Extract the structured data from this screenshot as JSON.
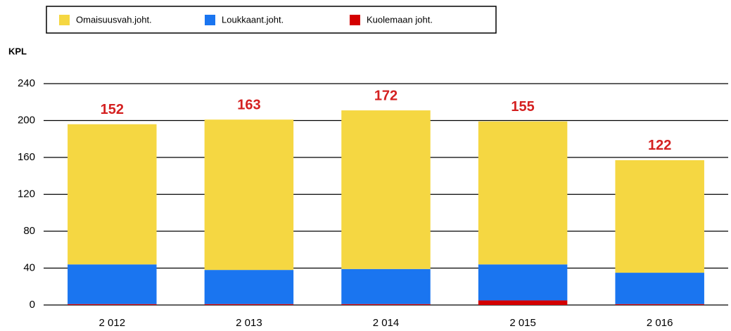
{
  "chart_data": {
    "type": "stacked_bar",
    "y_axis_label": "KPL",
    "categories": [
      "2 012",
      "2 013",
      "2 014",
      "2 015",
      "2 016"
    ],
    "series": [
      {
        "name": "Omaisuusvah.joht.",
        "color": "#f5d742",
        "values": [
          152,
          163,
          172,
          155,
          122
        ]
      },
      {
        "name": "Loukkaant.joht.",
        "color": "#1a75f0",
        "values": [
          43,
          37,
          38,
          39,
          34
        ]
      },
      {
        "name": "Kuolemaan joht.",
        "color": "#d40000",
        "values": [
          1,
          1,
          1,
          5,
          1
        ]
      }
    ],
    "ylim": [
      0,
      240
    ],
    "yticks": [
      0,
      40,
      80,
      120,
      160,
      200,
      240
    ],
    "grid": true,
    "legend": "top"
  }
}
